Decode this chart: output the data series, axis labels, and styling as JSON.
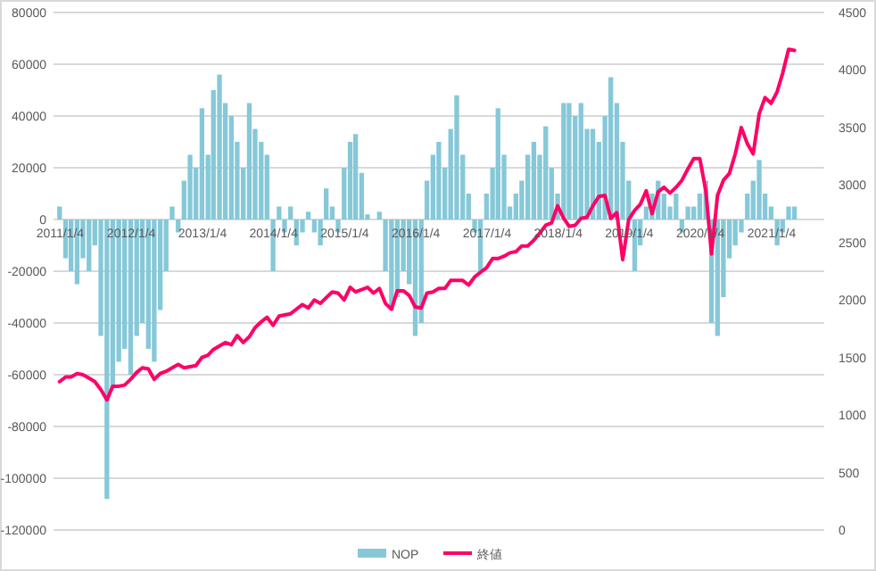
{
  "chart_data": {
    "type": "bar",
    "x": [
      "2011-01",
      "2011-02",
      "2011-03",
      "2011-04",
      "2011-05",
      "2011-06",
      "2011-07",
      "2011-08",
      "2011-09",
      "2011-10",
      "2011-11",
      "2011-12",
      "2012-01",
      "2012-02",
      "2012-03",
      "2012-04",
      "2012-05",
      "2012-06",
      "2012-07",
      "2012-08",
      "2012-09",
      "2012-10",
      "2012-11",
      "2012-12",
      "2013-01",
      "2013-02",
      "2013-03",
      "2013-04",
      "2013-05",
      "2013-06",
      "2013-07",
      "2013-08",
      "2013-09",
      "2013-10",
      "2013-11",
      "2013-12",
      "2014-01",
      "2014-02",
      "2014-03",
      "2014-04",
      "2014-05",
      "2014-06",
      "2014-07",
      "2014-08",
      "2014-09",
      "2014-10",
      "2014-11",
      "2014-12",
      "2015-01",
      "2015-02",
      "2015-03",
      "2015-04",
      "2015-05",
      "2015-06",
      "2015-07",
      "2015-08",
      "2015-09",
      "2015-10",
      "2015-11",
      "2015-12",
      "2016-01",
      "2016-02",
      "2016-03",
      "2016-04",
      "2016-05",
      "2016-06",
      "2016-07",
      "2016-08",
      "2016-09",
      "2016-10",
      "2016-11",
      "2016-12",
      "2017-01",
      "2017-02",
      "2017-03",
      "2017-04",
      "2017-05",
      "2017-06",
      "2017-07",
      "2017-08",
      "2017-09",
      "2017-10",
      "2017-11",
      "2017-12",
      "2018-01",
      "2018-02",
      "2018-03",
      "2018-04",
      "2018-05",
      "2018-06",
      "2018-07",
      "2018-08",
      "2018-09",
      "2018-10",
      "2018-11",
      "2018-12",
      "2019-01",
      "2019-02",
      "2019-03",
      "2019-04",
      "2019-05",
      "2019-06",
      "2019-07",
      "2019-08",
      "2019-09",
      "2019-10",
      "2019-11",
      "2019-12",
      "2020-01",
      "2020-02",
      "2020-03",
      "2020-04",
      "2020-05",
      "2020-06",
      "2020-07",
      "2020-08",
      "2020-09",
      "2020-10",
      "2020-11",
      "2020-12",
      "2021-01",
      "2021-02",
      "2021-03",
      "2021-04",
      "2021-05"
    ],
    "series": [
      {
        "name": "NOP",
        "color": "#86c8d8",
        "values": [
          5000,
          -15000,
          -20000,
          -25000,
          -15000,
          -20000,
          -10000,
          -45000,
          -108000,
          -65000,
          -55000,
          -50000,
          -60000,
          -45000,
          -40000,
          -50000,
          -55000,
          -35000,
          -20000,
          5000,
          -5000,
          15000,
          25000,
          20000,
          43000,
          25000,
          50000,
          56000,
          45000,
          40000,
          30000,
          20000,
          45000,
          35000,
          30000,
          25000,
          -20000,
          5000,
          -5000,
          5000,
          -10000,
          -5000,
          3000,
          -5000,
          -10000,
          12000,
          5000,
          -5000,
          20000,
          30000,
          33000,
          18000,
          2000,
          0,
          3000,
          -20000,
          -35000,
          -30000,
          -20000,
          -25000,
          -45000,
          -40000,
          15000,
          25000,
          30000,
          20000,
          35000,
          48000,
          25000,
          10000,
          -5000,
          -20000,
          10000,
          20000,
          43000,
          25000,
          5000,
          10000,
          15000,
          25000,
          30000,
          25000,
          36000,
          20000,
          10000,
          45000,
          45000,
          40000,
          45000,
          35000,
          35000,
          30000,
          40000,
          55000,
          45000,
          30000,
          15000,
          -20000,
          -10000,
          5000,
          10000,
          15000,
          10000,
          5000,
          10000,
          -5000,
          5000,
          5000,
          10000,
          15000,
          -40000,
          -45000,
          -30000,
          -15000,
          -10000,
          -5000,
          10000,
          15000,
          23000,
          10000,
          5000,
          -10000,
          -5000,
          5000,
          5000
        ]
      },
      {
        "name": "終値",
        "type": "line",
        "axis": "y2",
        "color": "#ff0066",
        "values": [
          1290,
          1330,
          1330,
          1360,
          1350,
          1320,
          1290,
          1220,
          1130,
          1250,
          1250,
          1260,
          1310,
          1370,
          1410,
          1400,
          1310,
          1360,
          1380,
          1410,
          1440,
          1410,
          1420,
          1430,
          1500,
          1520,
          1570,
          1600,
          1630,
          1610,
          1690,
          1630,
          1680,
          1760,
          1810,
          1850,
          1780,
          1860,
          1870,
          1880,
          1920,
          1960,
          1930,
          2000,
          1970,
          2020,
          2070,
          2060,
          2000,
          2110,
          2070,
          2090,
          2110,
          2060,
          2100,
          1970,
          1920,
          2080,
          2080,
          2040,
          1940,
          1930,
          2060,
          2070,
          2100,
          2100,
          2170,
          2170,
          2170,
          2130,
          2200,
          2240,
          2280,
          2360,
          2360,
          2380,
          2410,
          2420,
          2470,
          2470,
          2520,
          2580,
          2650,
          2670,
          2820,
          2710,
          2640,
          2650,
          2710,
          2720,
          2820,
          2900,
          2910,
          2710,
          2760,
          2350,
          2700,
          2780,
          2830,
          2950,
          2750,
          2940,
          2980,
          2930,
          2980,
          3040,
          3140,
          3230,
          3230,
          2950,
          2400,
          2910,
          3040,
          3100,
          3270,
          3500,
          3360,
          3270,
          3620,
          3760,
          3710,
          3810,
          3970,
          4180,
          4170
        ]
      }
    ],
    "xlim": [
      "2010-12-01",
      "2021-10-01"
    ],
    "xticks": [
      {
        "value": "2011-01-04",
        "label": "2011/1/4"
      },
      {
        "value": "2012-01-04",
        "label": "2012/1/4"
      },
      {
        "value": "2013-01-04",
        "label": "2013/1/4"
      },
      {
        "value": "2014-01-04",
        "label": "2014/1/4"
      },
      {
        "value": "2015-01-04",
        "label": "2015/1/4"
      },
      {
        "value": "2016-01-04",
        "label": "2016/1/4"
      },
      {
        "value": "2017-01-04",
        "label": "2017/1/4"
      },
      {
        "value": "2018-01-04",
        "label": "2018/1/4"
      },
      {
        "value": "2019-01-04",
        "label": "2019/1/4"
      },
      {
        "value": "2020-01-04",
        "label": "2020/1/4"
      },
      {
        "value": "2021-01-04",
        "label": "2021/1/4"
      }
    ],
    "ylim": [
      -120000,
      80000
    ],
    "yticks": [
      -120000,
      -100000,
      -80000,
      -60000,
      -40000,
      -20000,
      0,
      20000,
      40000,
      60000,
      80000
    ],
    "y2lim": [
      0,
      4500
    ],
    "y2ticks": [
      0,
      500,
      1000,
      1500,
      2000,
      2500,
      3000,
      3500,
      4000,
      4500
    ],
    "grid": "y",
    "legend": "bottom"
  }
}
